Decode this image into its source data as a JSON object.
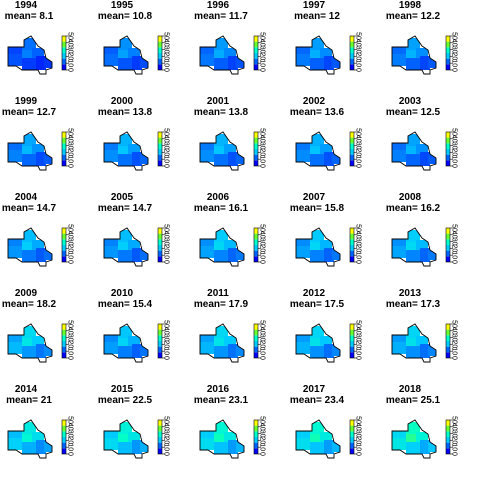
{
  "chart_data": {
    "type": "heatmap",
    "colorbar": {
      "ticks": [
        "0",
        "10",
        "20",
        "30",
        "40",
        "50"
      ],
      "range": [
        0,
        50
      ],
      "colors": [
        "#0000ff",
        "#0066ff",
        "#00ccff",
        "#00ffcc",
        "#66ff33",
        "#ffff00"
      ]
    },
    "panels": [
      {
        "year": "1994",
        "mean_label": "mean= 8.1",
        "mean": 8.1
      },
      {
        "year": "1995",
        "mean_label": "mean= 10.8",
        "mean": 10.8
      },
      {
        "year": "1996",
        "mean_label": "mean= 11.7",
        "mean": 11.7
      },
      {
        "year": "1997",
        "mean_label": "mean= 12",
        "mean": 12
      },
      {
        "year": "1998",
        "mean_label": "mean= 12.2",
        "mean": 12.2
      },
      {
        "year": "1999",
        "mean_label": "mean= 12.7",
        "mean": 12.7
      },
      {
        "year": "2000",
        "mean_label": "mean= 13.8",
        "mean": 13.8
      },
      {
        "year": "2001",
        "mean_label": "mean= 13.8",
        "mean": 13.8
      },
      {
        "year": "2002",
        "mean_label": "mean= 13.6",
        "mean": 13.6
      },
      {
        "year": "2003",
        "mean_label": "mean= 12.5",
        "mean": 12.5
      },
      {
        "year": "2004",
        "mean_label": "mean= 14.7",
        "mean": 14.7
      },
      {
        "year": "2005",
        "mean_label": "mean= 14.7",
        "mean": 14.7
      },
      {
        "year": "2006",
        "mean_label": "mean= 16.1",
        "mean": 16.1
      },
      {
        "year": "2007",
        "mean_label": "mean= 15.8",
        "mean": 15.8
      },
      {
        "year": "2008",
        "mean_label": "mean= 16.2",
        "mean": 16.2
      },
      {
        "year": "2009",
        "mean_label": "mean= 18.2",
        "mean": 18.2
      },
      {
        "year": "2010",
        "mean_label": "mean= 15.4",
        "mean": 15.4
      },
      {
        "year": "2011",
        "mean_label": "mean= 17.9",
        "mean": 17.9
      },
      {
        "year": "2012",
        "mean_label": "mean= 17.5",
        "mean": 17.5
      },
      {
        "year": "2013",
        "mean_label": "mean= 17.3",
        "mean": 17.3
      },
      {
        "year": "2014",
        "mean_label": "mean= 21",
        "mean": 21
      },
      {
        "year": "2015",
        "mean_label": "mean= 22.5",
        "mean": 22.5
      },
      {
        "year": "2016",
        "mean_label": "mean= 23.1",
        "mean": 23.1
      },
      {
        "year": "2017",
        "mean_label": "mean= 23.4",
        "mean": 23.4
      },
      {
        "year": "2018",
        "mean_label": "mean= 25.1",
        "mean": 25.1
      }
    ]
  }
}
